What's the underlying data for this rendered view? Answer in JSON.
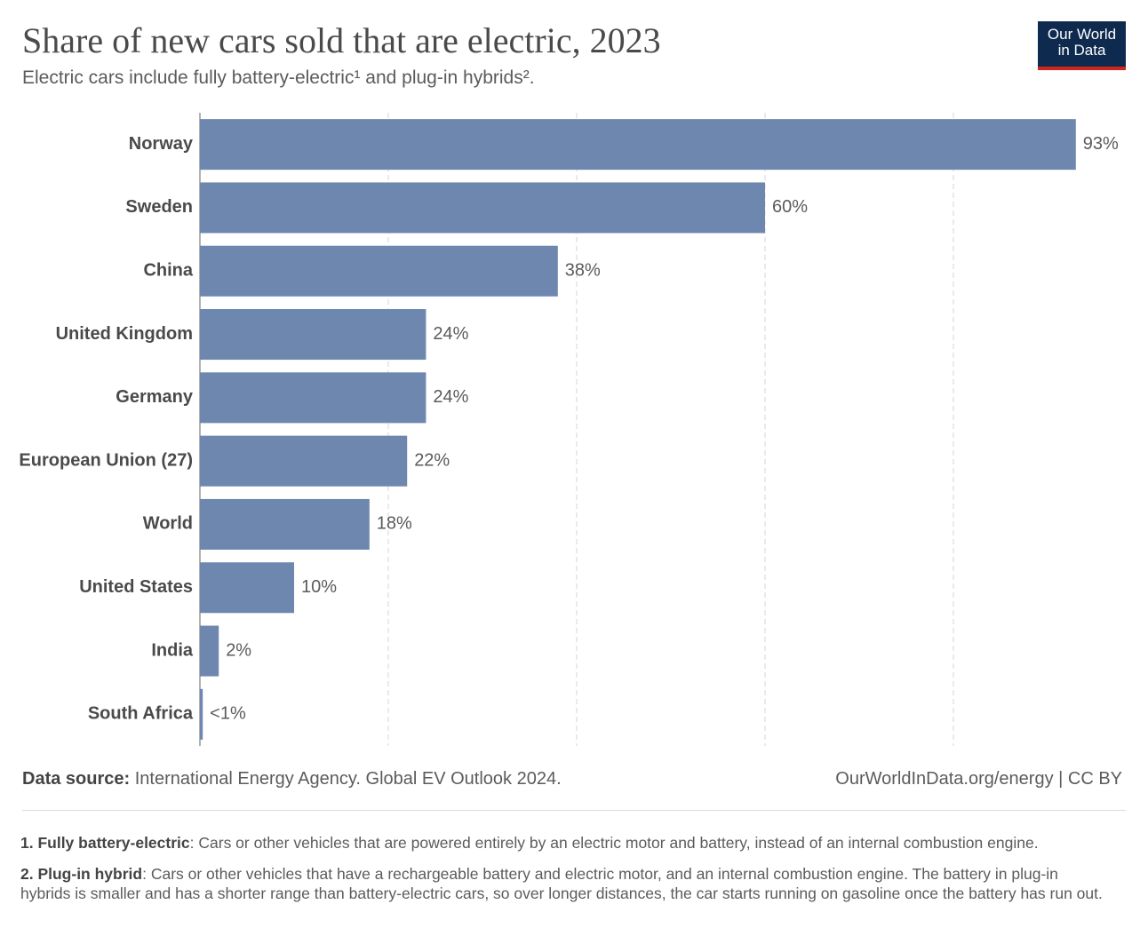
{
  "chart_data": {
    "type": "bar",
    "orientation": "horizontal",
    "title": "Share of new cars sold that are electric, 2023",
    "subtitle": "Electric cars include fully battery-electric¹ and plug-in hybrids².",
    "logo": [
      "Our World",
      "in Data"
    ],
    "categories": [
      "Norway",
      "Sweden",
      "China",
      "United Kingdom",
      "Germany",
      "European Union (27)",
      "World",
      "United States",
      "India",
      "South Africa"
    ],
    "values": [
      93,
      60,
      38,
      24,
      24,
      22,
      18,
      10,
      2,
      0.3
    ],
    "value_labels": [
      "93%",
      "60%",
      "38%",
      "24%",
      "24%",
      "22%",
      "18%",
      "10%",
      "2%",
      "<1%"
    ],
    "color": "#6d87af",
    "xlim": [
      0,
      100
    ],
    "xgrid": [
      20,
      40,
      60,
      80
    ],
    "source_label": "Data source:",
    "source": "International Energy Agency. Global EV Outlook 2024.",
    "url": "OurWorldInData.org/energy | CC BY",
    "footnotes": [
      {
        "term": "1. Fully battery-electric",
        "text": ": Cars or other vehicles that are powered entirely by an electric motor and battery, instead of an internal combustion engine."
      },
      {
        "term": "2. Plug-in hybrid",
        "text": ": Cars or other vehicles that have a rechargeable battery and electric motor, and an internal combustion engine. The battery in plug-in hybrids is smaller and has a shorter range than battery-electric cars, so over longer distances, the car starts running on gasoline once the battery has run out."
      }
    ]
  }
}
